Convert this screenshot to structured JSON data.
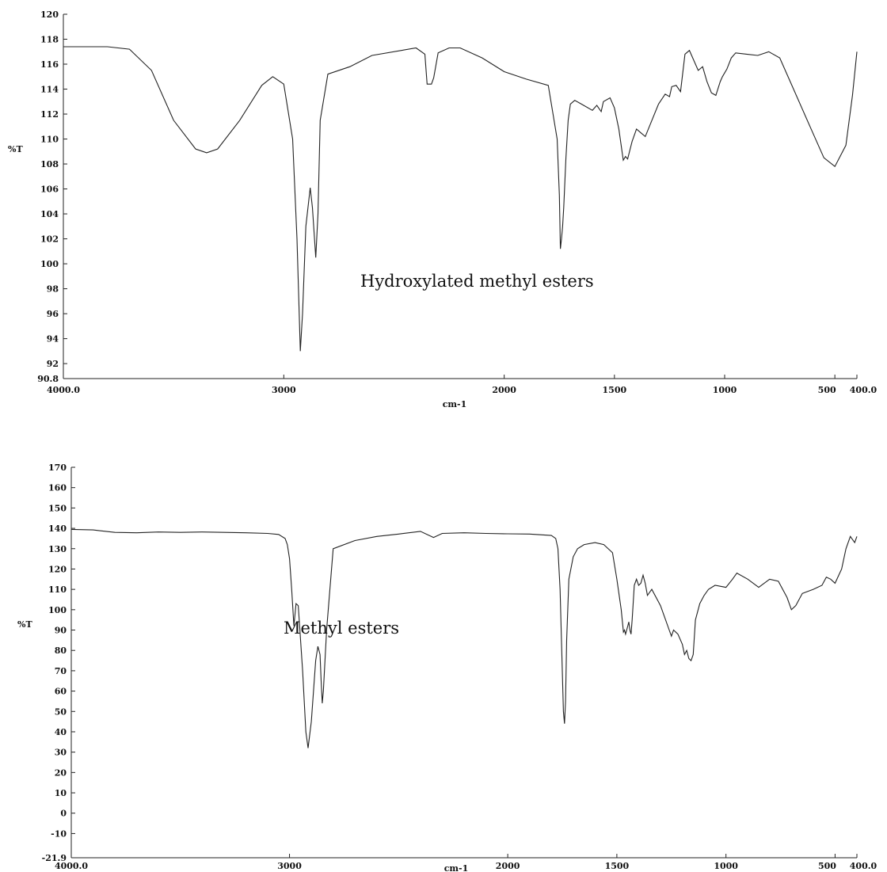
{
  "chart_data": [
    {
      "type": "line",
      "title": "",
      "annotation": "Hydroxylated methyl esters",
      "xlabel": "cm-1",
      "ylabel": "%T",
      "xlim": [
        4000.0,
        400.0
      ],
      "ylim": [
        90.8,
        120
      ],
      "x_ticks": [
        {
          "value": 4000,
          "label": "4000.0"
        },
        {
          "value": 3000,
          "label": "3000"
        },
        {
          "value": 2000,
          "label": "2000"
        },
        {
          "value": 1500,
          "label": "1500"
        },
        {
          "value": 1000,
          "label": "1000"
        },
        {
          "value": 500,
          "label": "500"
        },
        {
          "value": 400,
          "label": "400.0"
        }
      ],
      "y_ticks": [
        {
          "value": 120,
          "label": "120"
        },
        {
          "value": 118,
          "label": "118"
        },
        {
          "value": 116,
          "label": "116"
        },
        {
          "value": 114,
          "label": "114"
        },
        {
          "value": 112,
          "label": "112"
        },
        {
          "value": 110,
          "label": "110"
        },
        {
          "value": 108,
          "label": "108"
        },
        {
          "value": 106,
          "label": "106"
        },
        {
          "value": 104,
          "label": "104"
        },
        {
          "value": 102,
          "label": "102"
        },
        {
          "value": 100,
          "label": "100"
        },
        {
          "value": 98,
          "label": "98"
        },
        {
          "value": 96,
          "label": "96"
        },
        {
          "value": 94,
          "label": "94"
        },
        {
          "value": 92,
          "label": "92"
        },
        {
          "value": 90.8,
          "label": "90.8"
        }
      ],
      "series": [
        {
          "x": [
            4000,
            3800,
            3700,
            3600,
            3500,
            3400,
            3350,
            3300,
            3200,
            3100,
            3050,
            3000,
            2960,
            2940,
            2925,
            2915,
            2900,
            2880,
            2870,
            2855,
            2845,
            2835,
            2800,
            2700,
            2600,
            2400,
            2360,
            2350,
            2330,
            2320,
            2300,
            2250,
            2200,
            2100,
            2000,
            1900,
            1800,
            1760,
            1750,
            1745,
            1740,
            1735,
            1730,
            1720,
            1710,
            1700,
            1680,
            1650,
            1600,
            1580,
            1560,
            1550,
            1520,
            1500,
            1480,
            1460,
            1450,
            1440,
            1420,
            1400,
            1380,
            1360,
            1300,
            1270,
            1250,
            1240,
            1220,
            1200,
            1180,
            1160,
            1150,
            1120,
            1100,
            1080,
            1060,
            1040,
            1020,
            1010,
            990,
            970,
            950,
            900,
            850,
            800,
            750,
            700,
            650,
            600,
            550,
            500,
            450,
            420,
            400
          ],
          "y": [
            117.4,
            117.4,
            117.2,
            115.5,
            111.5,
            109.2,
            108.9,
            109.2,
            111.5,
            114.3,
            115.0,
            114.4,
            110.0,
            102.0,
            93.0,
            96.0,
            103.0,
            106.1,
            104.5,
            100.5,
            104.0,
            111.5,
            115.2,
            115.8,
            116.7,
            117.3,
            116.8,
            114.4,
            114.4,
            114.9,
            116.9,
            117.3,
            117.3,
            116.5,
            115.4,
            114.8,
            114.3,
            110.0,
            105.5,
            101.2,
            102.0,
            103.0,
            104.5,
            108.5,
            111.5,
            112.8,
            113.1,
            112.8,
            112.3,
            112.7,
            112.2,
            113.0,
            113.3,
            112.5,
            110.8,
            108.3,
            108.6,
            108.4,
            109.8,
            110.8,
            110.5,
            110.2,
            112.8,
            113.6,
            113.4,
            114.2,
            114.3,
            113.8,
            116.8,
            117.1,
            116.7,
            115.5,
            115.8,
            114.6,
            113.7,
            113.5,
            114.6,
            115.0,
            115.6,
            116.5,
            116.9,
            116.8,
            116.7,
            117.0,
            116.5,
            114.5,
            112.5,
            110.5,
            108.5,
            107.8,
            109.5,
            113.5,
            117.0
          ]
        }
      ]
    },
    {
      "type": "line",
      "title": "",
      "annotation": "Methyl esters",
      "xlabel": "cm-1",
      "ylabel": "%T",
      "xlim": [
        4000.0,
        400.0
      ],
      "ylim": [
        -21.9,
        170
      ],
      "x_ticks": [
        {
          "value": 4000,
          "label": "4000.0"
        },
        {
          "value": 3000,
          "label": "3000"
        },
        {
          "value": 2000,
          "label": "2000"
        },
        {
          "value": 1500,
          "label": "1500"
        },
        {
          "value": 1000,
          "label": "1000"
        },
        {
          "value": 500,
          "label": "500"
        },
        {
          "value": 400,
          "label": "400.0"
        }
      ],
      "y_ticks": [
        {
          "value": 170,
          "label": "170"
        },
        {
          "value": 160,
          "label": "160"
        },
        {
          "value": 150,
          "label": "150"
        },
        {
          "value": 140,
          "label": "140"
        },
        {
          "value": 130,
          "label": "130"
        },
        {
          "value": 120,
          "label": "120"
        },
        {
          "value": 110,
          "label": "110"
        },
        {
          "value": 100,
          "label": "100"
        },
        {
          "value": 90,
          "label": "90"
        },
        {
          "value": 80,
          "label": "80"
        },
        {
          "value": 70,
          "label": "70"
        },
        {
          "value": 60,
          "label": "60"
        },
        {
          "value": 50,
          "label": "50"
        },
        {
          "value": 40,
          "label": "40"
        },
        {
          "value": 30,
          "label": "30"
        },
        {
          "value": 20,
          "label": "20"
        },
        {
          "value": 10,
          "label": "10"
        },
        {
          "value": 0,
          "label": "0"
        },
        {
          "value": -10,
          "label": "-10"
        },
        {
          "value": -21.9,
          "label": "-21.9"
        }
      ],
      "series": [
        {
          "x": [
            4000,
            3900,
            3800,
            3700,
            3600,
            3500,
            3400,
            3300,
            3200,
            3100,
            3050,
            3020,
            3010,
            3000,
            2990,
            2980,
            2970,
            2960,
            2940,
            2925,
            2915,
            2900,
            2880,
            2870,
            2860,
            2855,
            2850,
            2845,
            2830,
            2800,
            2700,
            2600,
            2500,
            2400,
            2340,
            2300,
            2200,
            2100,
            2000,
            1900,
            1800,
            1780,
            1770,
            1760,
            1750,
            1745,
            1740,
            1735,
            1730,
            1720,
            1700,
            1680,
            1650,
            1600,
            1560,
            1520,
            1500,
            1480,
            1470,
            1465,
            1460,
            1455,
            1450,
            1445,
            1440,
            1435,
            1430,
            1420,
            1410,
            1400,
            1390,
            1380,
            1370,
            1360,
            1340,
            1300,
            1280,
            1260,
            1250,
            1240,
            1220,
            1200,
            1190,
            1180,
            1170,
            1160,
            1150,
            1140,
            1120,
            1100,
            1080,
            1050,
            1000,
            970,
            950,
            900,
            850,
            800,
            760,
            720,
            700,
            680,
            650,
            600,
            560,
            540,
            520,
            500,
            470,
            450,
            430,
            410,
            400
          ],
          "y": [
            139.5,
            139.2,
            138.0,
            137.8,
            138.2,
            138.0,
            138.2,
            138.0,
            137.8,
            137.5,
            137.0,
            135.0,
            132.0,
            125.0,
            110.0,
            92.0,
            103.0,
            102.0,
            70.0,
            40.0,
            32.0,
            45.0,
            75.0,
            82.0,
            78.0,
            65.0,
            54.0,
            60.0,
            90.0,
            130.0,
            134.0,
            136.0,
            137.2,
            138.5,
            135.5,
            137.5,
            137.8,
            137.5,
            137.3,
            137.2,
            136.5,
            135.0,
            130.0,
            110.0,
            70.0,
            50.0,
            44.0,
            55.0,
            85.0,
            115.0,
            126.0,
            130.0,
            132.0,
            133.0,
            132.0,
            128.0,
            115.0,
            100.0,
            89.0,
            90.0,
            88.0,
            90.0,
            92.0,
            94.0,
            90.0,
            88.0,
            95.0,
            112.0,
            115.0,
            112.0,
            113.0,
            117.0,
            113.0,
            107.0,
            110.0,
            102.0,
            96.0,
            90.0,
            87.0,
            90.0,
            88.0,
            83.0,
            78.0,
            80.0,
            76.0,
            75.0,
            78.0,
            95.0,
            103.0,
            107.0,
            110.0,
            112.0,
            111.0,
            115.0,
            118.0,
            115.0,
            111.0,
            115.0,
            114.0,
            106.0,
            100.0,
            102.0,
            108.0,
            110.0,
            112.0,
            116.0,
            115.0,
            113.0,
            120.0,
            130.0,
            136.0,
            133.0,
            136.0
          ]
        }
      ]
    }
  ]
}
